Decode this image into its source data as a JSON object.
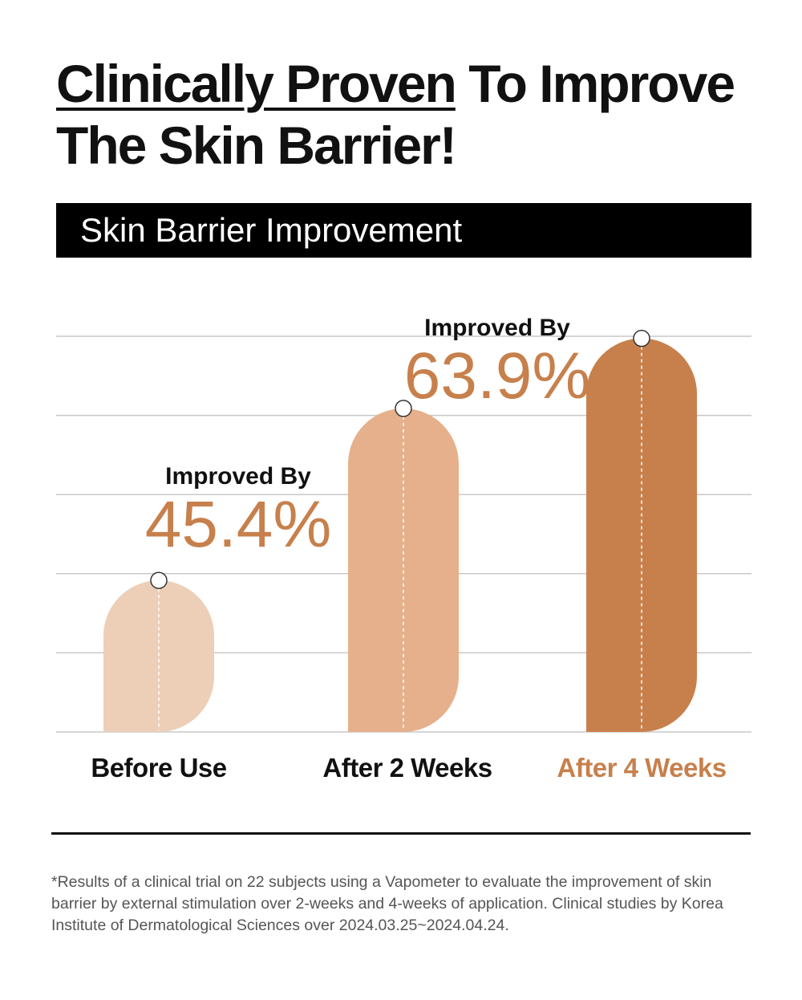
{
  "header": {
    "title_underlined": "Clinically Proven",
    "title_rest": " To Improve The Skin Barrier!"
  },
  "banner": {
    "label": "Skin Barrier Improvement"
  },
  "colors": {
    "bar_before": "#edcfb7",
    "bar_2weeks": "#e5b08b",
    "bar_4weeks": "#c7804c",
    "accent": "#c7804c",
    "gridline": "#c8c8c8"
  },
  "chart_data": {
    "type": "bar",
    "categories": [
      "Before Use",
      "After 2 Weeks",
      "After 4 Weeks"
    ],
    "values": [
      100,
      145.4,
      163.9
    ],
    "ylim": [
      60,
      170
    ],
    "grid": true,
    "annotations": [
      {
        "category": "After 2 Weeks",
        "caption": "Improved By",
        "value": "45.4%"
      },
      {
        "category": "After 4 Weeks",
        "caption": "Improved By",
        "value": "63.9%"
      }
    ]
  },
  "footnote": "*Results of a clinical trial on 22 subjects using a Vapometer to evaluate the improvement of skin barrier by external stimulation over 2-weeks and 4-weeks of application. Clinical studies by Korea Institute of Dermatological Sciences over 2024.03.25~2024.04.24."
}
